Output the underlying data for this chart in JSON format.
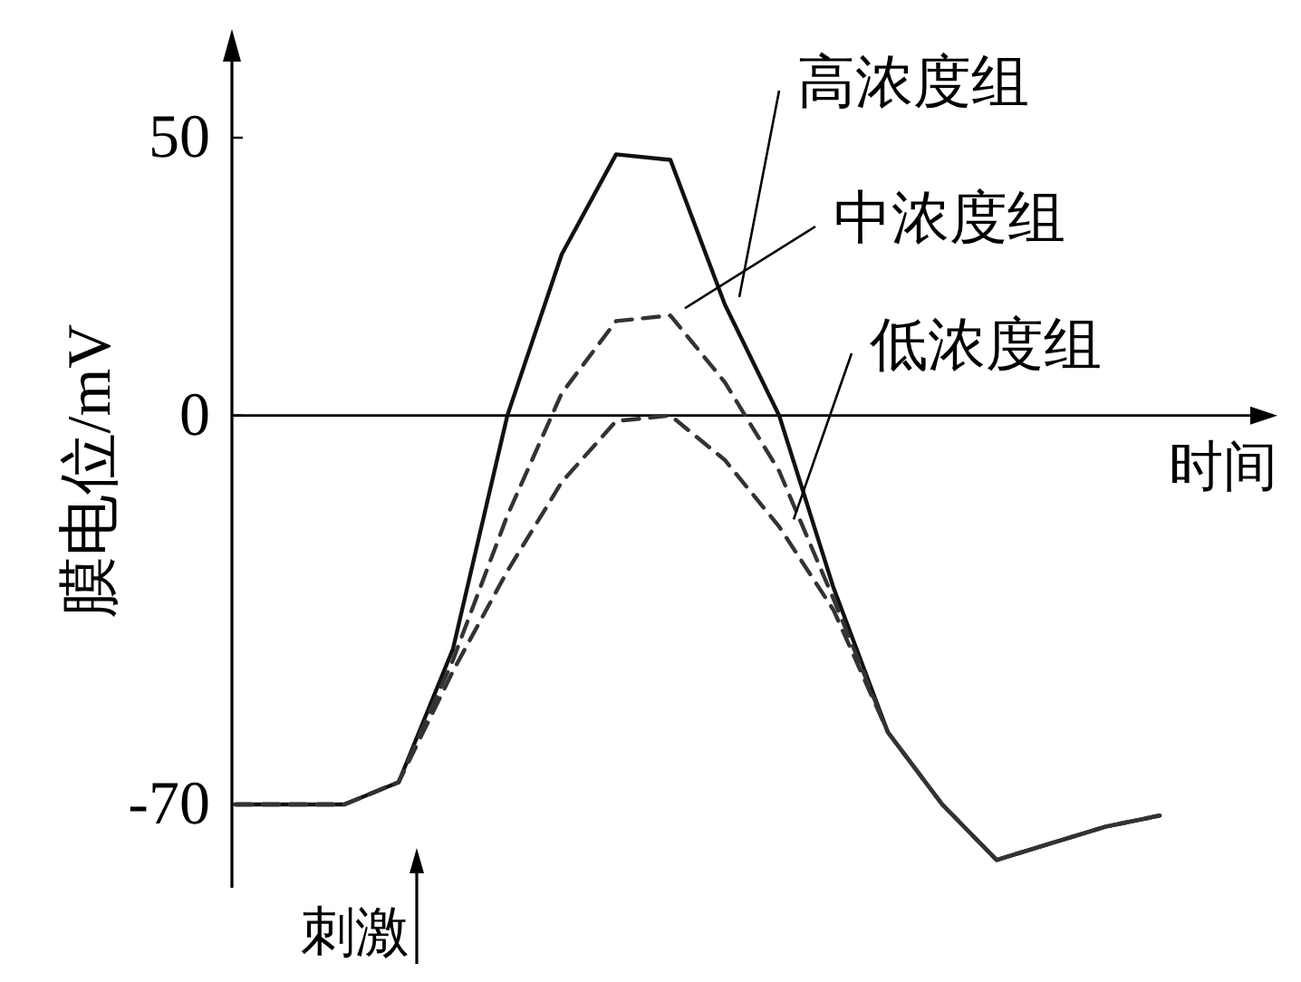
{
  "chart_data": {
    "type": "line",
    "xlabel": "时间",
    "ylabel": "膜电位/mV",
    "categories": [
      null,
      null,
      null,
      null,
      null,
      null,
      null,
      null,
      null,
      null,
      null,
      null,
      null,
      null,
      null,
      null,
      null,
      null
    ],
    "series": [
      {
        "name": "高浓度组",
        "color": "#111111",
        "line_style": "solid",
        "values": [
          -70,
          -70,
          -70,
          -66,
          -42,
          0,
          29,
          47,
          46,
          20,
          0,
          -31,
          -57,
          -70,
          -80,
          -77,
          -74,
          -72
        ]
      },
      {
        "name": "中浓度组",
        "color": "#333333",
        "line_style": "dashed",
        "values": [
          -70,
          -70,
          -70,
          -66,
          -44,
          -18,
          4,
          17,
          18,
          6,
          -10,
          -33,
          -57,
          -70,
          -80,
          -77,
          -74,
          -72
        ]
      },
      {
        "name": "低浓度组",
        "color": "#333333",
        "line_style": "dashed",
        "values": [
          -70,
          -70,
          -70,
          -66,
          -46,
          -28,
          -12,
          -1,
          0,
          -8,
          -20,
          -35,
          -57,
          -70,
          -80,
          -77,
          -74,
          -72
        ]
      }
    ],
    "ref_lines": [
      {
        "axis": "y",
        "value": 0
      }
    ],
    "ylim": [
      -85,
      65
    ],
    "yticks": [
      -70,
      0,
      50
    ],
    "annotations": [
      "刺激"
    ],
    "legend": false,
    "grid": false,
    "marker": "none"
  }
}
